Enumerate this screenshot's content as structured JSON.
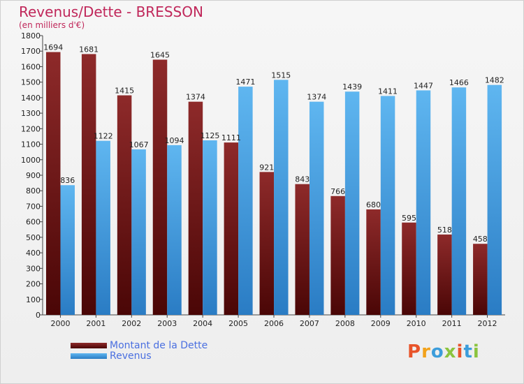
{
  "chart_data": {
    "type": "bar",
    "title": "Revenus/Dette - BRESSON",
    "subtitle": "(en milliers d'€)",
    "categories": [
      "2000",
      "2001",
      "2002",
      "2003",
      "2004",
      "2005",
      "2006",
      "2007",
      "2008",
      "2009",
      "2010",
      "2011",
      "2012"
    ],
    "series": [
      {
        "name": "Montant de la Dette",
        "color": "#7a1a1a",
        "values": [
          1694,
          1681,
          1415,
          1645,
          1374,
          1111,
          921,
          843,
          766,
          680,
          595,
          518,
          458
        ]
      },
      {
        "name": "Revenus",
        "color": "#3b9be0",
        "values": [
          836,
          1122,
          1067,
          1094,
          1125,
          1471,
          1515,
          1374,
          1439,
          1411,
          1447,
          1466,
          1482
        ]
      }
    ],
    "ylim": [
      0,
      1800
    ],
    "yticks": [
      0,
      100,
      200,
      300,
      400,
      500,
      600,
      700,
      800,
      900,
      1000,
      1100,
      1200,
      1300,
      1400,
      1500,
      1600,
      1700,
      1800
    ],
    "grid": false,
    "legend_position": "bottom-left"
  },
  "legend": {
    "items": [
      {
        "label": "Montant de la Dette",
        "color": "#7a1a1a"
      },
      {
        "label": "Revenus",
        "color": "#3b9be0"
      }
    ]
  },
  "logo": {
    "text": "Proxiti",
    "colors": [
      "#e8542a",
      "#f2a21b",
      "#3c9ddb",
      "#8bc43f",
      "#e8542a",
      "#3c9ddb",
      "#8bc43f"
    ]
  }
}
